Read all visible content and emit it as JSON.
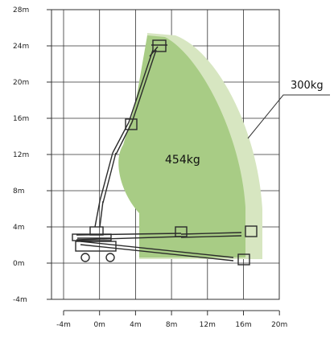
{
  "diagram": {
    "y_axis": {
      "unit": "m",
      "ticks": [
        "28m",
        "24m",
        "20m",
        "16m",
        "12m",
        "8m",
        "4m",
        "0m",
        "-4m"
      ]
    },
    "x_axis": {
      "unit": "m",
      "ticks": [
        "-4m",
        "0m",
        "4m",
        "8m",
        "12m",
        "16m",
        "20m"
      ]
    },
    "zones": [
      {
        "label": "300kg",
        "color": "#d7e6c1"
      },
      {
        "label": "454kg",
        "color": "#a8cc85"
      }
    ],
    "machine_color": "#2b2b2b"
  }
}
